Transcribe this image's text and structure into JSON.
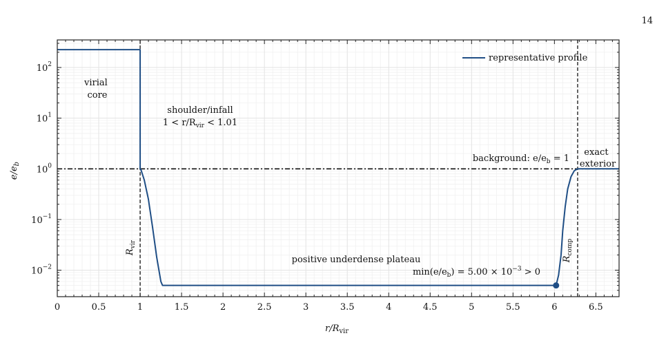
{
  "page_number": "14",
  "chart_data": {
    "type": "line",
    "xlabel_main": "r/R",
    "xlabel_sub": "vir",
    "ylabel_main": "e/e",
    "ylabel_sub": "b",
    "xlim": [
      0,
      6.78
    ],
    "ylim": [
      0.003,
      350
    ],
    "y_scale": "log",
    "grid": true,
    "legend_position": "top-right",
    "x_ticks": [
      0,
      0.5,
      1,
      1.5,
      2,
      2.5,
      3,
      3.5,
      4,
      4.5,
      5,
      5.5,
      6,
      6.5
    ],
    "x_tick_labels": [
      "0",
      "0.5",
      "1",
      "1.5",
      "2",
      "2.5",
      "3",
      "3.5",
      "4",
      "4.5",
      "5",
      "5.5",
      "6",
      "6.5"
    ],
    "y_ticks": [
      {
        "value": 0.01,
        "base": "10",
        "exp": "−2"
      },
      {
        "value": 0.1,
        "base": "10",
        "exp": "−1"
      },
      {
        "value": 1,
        "base": "10",
        "exp": "0"
      },
      {
        "value": 10,
        "base": "10",
        "exp": "1"
      },
      {
        "value": 100,
        "base": "10",
        "exp": "2"
      }
    ],
    "series": [
      {
        "name": "representative profile",
        "color": "#1f4e85",
        "x": [
          0,
          1.0,
          1.0,
          1.01,
          1.05,
          1.1,
          1.15,
          1.2,
          1.25,
          1.27,
          1.3,
          6.02,
          6.05,
          6.08,
          6.1,
          6.13,
          6.16,
          6.2,
          6.24,
          6.28,
          6.78
        ],
        "y": [
          225,
          225,
          1.0,
          0.96,
          0.6,
          0.25,
          0.07,
          0.018,
          0.006,
          0.005,
          0.005,
          0.005,
          0.008,
          0.02,
          0.06,
          0.18,
          0.4,
          0.7,
          0.92,
          1.0,
          1.0
        ]
      }
    ],
    "marker": {
      "x": 6.02,
      "y": 0.005,
      "color": "#1f4e85"
    },
    "hlines": [
      {
        "y": 1,
        "style": "dash-dot",
        "label": "background: e/e_b = 1"
      }
    ],
    "vlines": [
      {
        "x": 1.0,
        "style": "dashed",
        "label_main": "R",
        "label_sub": "vir"
      },
      {
        "x": 6.28,
        "style": "dashed",
        "label_main": "R",
        "label_sub": "comp"
      }
    ],
    "annotations": {
      "virial_core_line1": "virial",
      "virial_core_line2": "core",
      "shoulder_line1": "shoulder/infall",
      "shoulder_line2": "1 < r/R",
      "shoulder_line2_sub": "vir",
      "shoulder_line2_tail": " < 1.01",
      "background_text": "background: e/e",
      "background_sub": "b",
      "background_tail": " = 1",
      "exterior_line1": "exact",
      "exterior_line2": "exterior",
      "plateau_line1": "positive underdense plateau",
      "plateau_line2": "min(e/e",
      "plateau_line2_sub": "b",
      "plateau_line2_tail": ") = 5.00 × 10",
      "plateau_line2_exp": "−3",
      "plateau_line2_end": " > 0"
    }
  }
}
